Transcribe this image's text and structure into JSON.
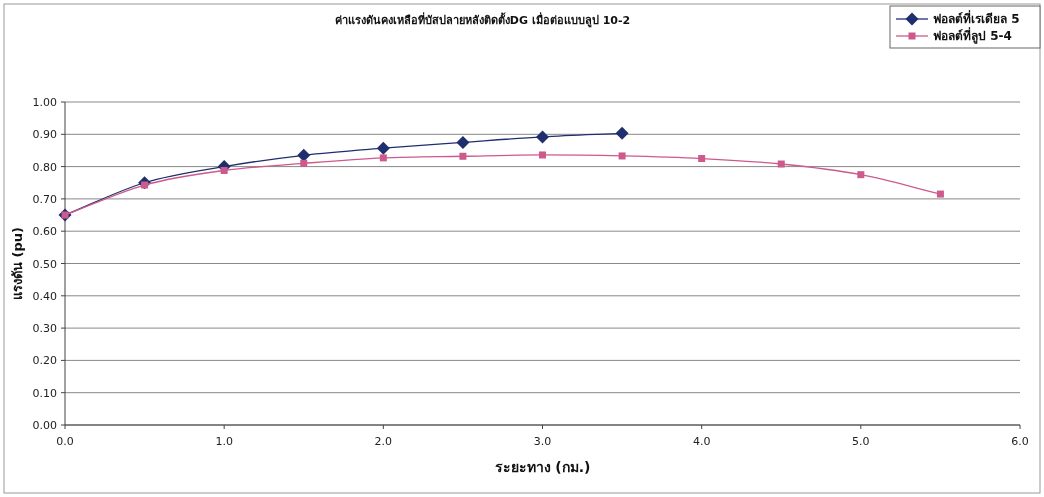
{
  "chart_data": {
    "type": "line",
    "title": "ค่าแรงดันคงเหลือที่บัสปลายหลังติดตั้งDG เมื่อต่อแบบลูป 10-2",
    "xlabel": "ระยะทาง (กม.)",
    "ylabel": "แรงดัน (pu)",
    "xlim": [
      0,
      6
    ],
    "xticks": [
      {
        "value": 0,
        "label": "0.0"
      },
      {
        "value": 1,
        "label": "1.0"
      },
      {
        "value": 2,
        "label": "2.0"
      },
      {
        "value": 3,
        "label": "3.0"
      },
      {
        "value": 4,
        "label": "4.0"
      },
      {
        "value": 5,
        "label": "5.0"
      },
      {
        "value": 6,
        "label": "6.0"
      }
    ],
    "ylim": [
      0,
      1
    ],
    "yticks": [
      {
        "value": 0,
        "label": "0.00"
      },
      {
        "value": 0.1,
        "label": "0.10"
      },
      {
        "value": 0.2,
        "label": "0.20"
      },
      {
        "value": 0.3,
        "label": "0.30"
      },
      {
        "value": 0.4,
        "label": "0.40"
      },
      {
        "value": 0.5,
        "label": "0.50"
      },
      {
        "value": 0.6,
        "label": "0.60"
      },
      {
        "value": 0.7,
        "label": "0.70"
      },
      {
        "value": 0.8,
        "label": "0.80"
      },
      {
        "value": 0.9,
        "label": "0.90"
      },
      {
        "value": 1,
        "label": "1.00"
      }
    ],
    "grid": "y",
    "legend": "top right",
    "series": [
      {
        "name": "ฟอลต์ที่เรเดียล 5",
        "color": "#1f2f6e",
        "marker": "diamond",
        "x": [
          0,
          0.5,
          1,
          1.5,
          2,
          2.5,
          3,
          3.5
        ],
        "values": [
          0.65,
          0.75,
          0.8,
          0.835,
          0.857,
          0.875,
          0.892,
          0.903
        ]
      },
      {
        "name": "ฟอลต์ที่ลูป 5-4",
        "color": "#cc5a8c",
        "marker": "square",
        "x": [
          0,
          0.5,
          1,
          1.5,
          2,
          2.5,
          3,
          3.5,
          4,
          4.5,
          5,
          5.5
        ],
        "values": [
          0.65,
          0.743,
          0.788,
          0.81,
          0.827,
          0.832,
          0.836,
          0.833,
          0.825,
          0.808,
          0.775,
          0.715
        ]
      }
    ]
  }
}
